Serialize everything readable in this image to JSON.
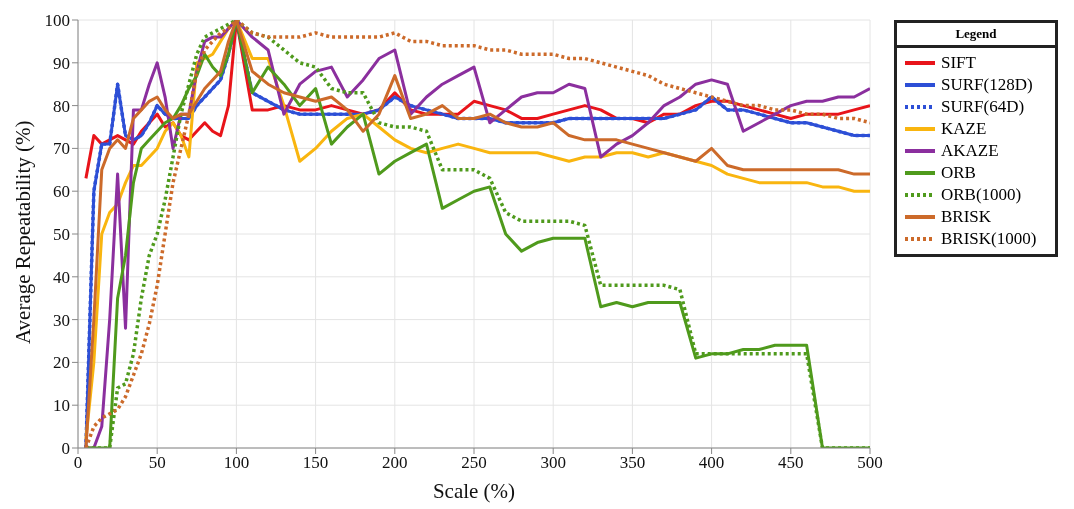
{
  "chart_data": {
    "type": "line",
    "xlabel": "Scale (%)",
    "ylabel": "Average Repeatability (%)",
    "legend_title": "Legend",
    "legend": "right",
    "grid": true,
    "xlim": [
      0,
      500
    ],
    "xticks": [
      0,
      50,
      100,
      150,
      200,
      250,
      300,
      350,
      400,
      450,
      500
    ],
    "ylim": [
      0,
      100
    ],
    "yticks": [
      0,
      10,
      20,
      30,
      40,
      50,
      60,
      70,
      80,
      90,
      100
    ],
    "x": [
      5,
      10,
      15,
      20,
      25,
      30,
      35,
      40,
      45,
      50,
      55,
      60,
      65,
      70,
      75,
      80,
      85,
      90,
      95,
      100,
      110,
      120,
      130,
      140,
      150,
      160,
      170,
      180,
      190,
      200,
      210,
      220,
      230,
      240,
      250,
      260,
      270,
      280,
      290,
      300,
      310,
      320,
      330,
      340,
      350,
      360,
      370,
      380,
      390,
      400,
      410,
      420,
      430,
      440,
      450,
      460,
      470,
      480,
      490,
      500
    ],
    "series": [
      {
        "name": "SURF(64D)",
        "color": "#2d4fd6",
        "line_style": "dotted",
        "values": [
          0,
          60,
          71,
          71,
          85,
          73,
          72,
          73,
          76,
          80,
          78,
          77,
          77,
          77,
          80,
          82,
          84,
          86,
          92,
          100,
          83,
          81,
          79,
          78,
          78,
          78,
          78,
          78,
          79,
          82,
          80,
          79,
          78,
          77,
          77,
          77,
          76,
          76,
          76,
          76,
          77,
          77,
          77,
          77,
          77,
          77,
          77,
          78,
          79,
          82,
          79,
          79,
          78,
          77,
          76,
          76,
          75,
          74,
          73,
          73
        ]
      },
      {
        "name": "SIFT",
        "color": "#e8141a",
        "line_style": "solid",
        "values": [
          63,
          73,
          71,
          72,
          73,
          72,
          71,
          74,
          76,
          78,
          75,
          76,
          73,
          72,
          74,
          76,
          74,
          73,
          80,
          100,
          79,
          79,
          80,
          79,
          79,
          80,
          79,
          78,
          79,
          83,
          79,
          78,
          78,
          78,
          81,
          80,
          79,
          77,
          77,
          78,
          79,
          80,
          79,
          77,
          77,
          76,
          78,
          78,
          80,
          81,
          81,
          80,
          79,
          78,
          77,
          78,
          78,
          78,
          79,
          80
        ]
      },
      {
        "name": "SURF(128D)",
        "color": "#2d4fd6",
        "line_style": "solid",
        "values": [
          0,
          60,
          71,
          71,
          85,
          73,
          72,
          73,
          76,
          80,
          78,
          77,
          77,
          77,
          80,
          82,
          84,
          86,
          92,
          100,
          83,
          81,
          79,
          78,
          78,
          78,
          78,
          78,
          79,
          82,
          80,
          79,
          78,
          77,
          77,
          77,
          76,
          76,
          76,
          76,
          77,
          77,
          77,
          77,
          77,
          77,
          77,
          78,
          79,
          82,
          79,
          79,
          78,
          77,
          76,
          76,
          75,
          74,
          73,
          73
        ]
      },
      {
        "name": "KAZE",
        "color": "#f9b50f",
        "line_style": "solid",
        "values": [
          2,
          20,
          50,
          55,
          57,
          62,
          66,
          66,
          68,
          70,
          74,
          76,
          73,
          68,
          90,
          91,
          92,
          95,
          98,
          100,
          91,
          91,
          80,
          67,
          70,
          74,
          77,
          78,
          75,
          72,
          70,
          69,
          70,
          71,
          70,
          69,
          69,
          69,
          69,
          68,
          67,
          68,
          68,
          69,
          69,
          68,
          69,
          68,
          67,
          66,
          64,
          63,
          62,
          62,
          62,
          62,
          61,
          61,
          60,
          60
        ]
      },
      {
        "name": "AKAZE",
        "color": "#8b2f9e",
        "line_style": "solid",
        "values": [
          0,
          0,
          5,
          30,
          64,
          28,
          79,
          79,
          85,
          90,
          82,
          70,
          78,
          78,
          88,
          95,
          96,
          96,
          98,
          100,
          96,
          93,
          78,
          85,
          88,
          89,
          82,
          86,
          91,
          93,
          78,
          82,
          85,
          87,
          89,
          76,
          79,
          82,
          83,
          83,
          85,
          84,
          68,
          71,
          73,
          76,
          80,
          82,
          85,
          86,
          85,
          74,
          76,
          78,
          80,
          81,
          81,
          82,
          82,
          84
        ]
      },
      {
        "name": "ORB",
        "color": "#4f9a1c",
        "line_style": "solid",
        "values": [
          0,
          0,
          0,
          0,
          35,
          45,
          62,
          70,
          72,
          74,
          76,
          77,
          80,
          84,
          87,
          92,
          89,
          87,
          92,
          100,
          83,
          89,
          85,
          80,
          84,
          71,
          75,
          78,
          64,
          67,
          69,
          71,
          56,
          58,
          60,
          61,
          50,
          46,
          48,
          49,
          49,
          49,
          33,
          34,
          33,
          34,
          34,
          34,
          21,
          22,
          22,
          23,
          23,
          24,
          24,
          24,
          0,
          0,
          0,
          0
        ]
      },
      {
        "name": "ORB(1000)",
        "color": "#4f9a1c",
        "line_style": "dotted",
        "values": [
          0,
          0,
          0,
          0,
          14,
          15,
          22,
          35,
          45,
          50,
          58,
          68,
          78,
          85,
          92,
          96,
          97,
          98,
          99,
          100,
          97,
          96,
          93,
          90,
          89,
          84,
          83,
          83,
          76,
          75,
          75,
          74,
          65,
          65,
          65,
          63,
          55,
          53,
          53,
          53,
          53,
          52,
          38,
          38,
          38,
          38,
          38,
          37,
          22,
          22,
          22,
          22,
          22,
          22,
          22,
          22,
          0,
          0,
          0,
          0
        ]
      },
      {
        "name": "BRISK",
        "color": "#cc6a2a",
        "line_style": "solid",
        "values": [
          0,
          30,
          65,
          70,
          72,
          70,
          77,
          79,
          81,
          82,
          79,
          77,
          78,
          78,
          81,
          84,
          86,
          88,
          95,
          100,
          88,
          85,
          83,
          82,
          81,
          82,
          79,
          74,
          78,
          87,
          77,
          78,
          80,
          77,
          77,
          78,
          76,
          75,
          75,
          76,
          73,
          72,
          72,
          72,
          71,
          70,
          69,
          68,
          67,
          70,
          66,
          65,
          65,
          65,
          65,
          65,
          65,
          65,
          64,
          64
        ]
      },
      {
        "name": "BRISK(1000)",
        "color": "#cc6a2a",
        "line_style": "dotted",
        "values": [
          0,
          5,
          7,
          8,
          9,
          12,
          17,
          22,
          29,
          38,
          50,
          62,
          70,
          78,
          88,
          93,
          95,
          97,
          98,
          100,
          97,
          96,
          96,
          96,
          97,
          96,
          96,
          96,
          96,
          97,
          95,
          95,
          94,
          94,
          94,
          93,
          93,
          92,
          92,
          92,
          91,
          91,
          90,
          89,
          88,
          87,
          85,
          84,
          83,
          82,
          81,
          80,
          80,
          79,
          79,
          78,
          78,
          77,
          77,
          76
        ]
      }
    ]
  }
}
